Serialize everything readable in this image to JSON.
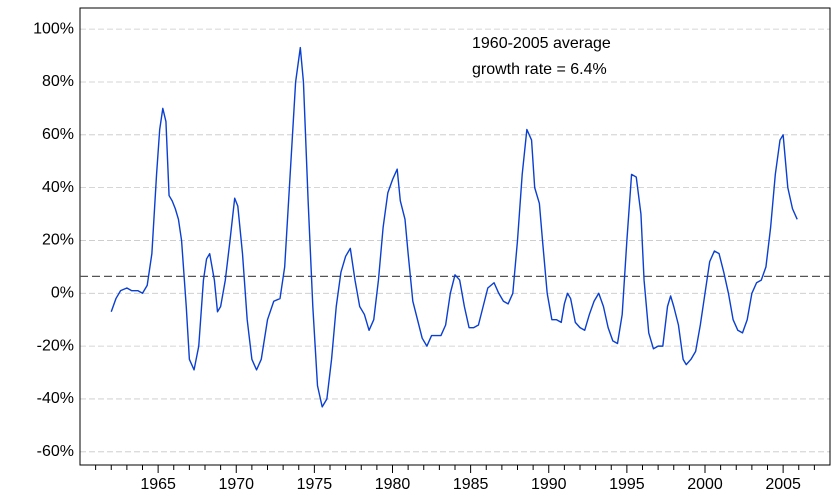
{
  "chart_data": {
    "type": "line",
    "annotation": [
      "1960-2005 average",
      "growth rate = 6.4%"
    ],
    "average": 6.4,
    "xlim": [
      1960,
      2008
    ],
    "ylim": [
      -65,
      108
    ],
    "xticks": [
      1965,
      1970,
      1975,
      1980,
      1985,
      1990,
      1995,
      2000,
      2005
    ],
    "xminorticks": [
      1961,
      1962,
      1963,
      1964,
      1966,
      1967,
      1968,
      1969,
      1971,
      1972,
      1973,
      1974,
      1976,
      1977,
      1978,
      1979,
      1981,
      1982,
      1983,
      1984,
      1986,
      1987,
      1988,
      1989,
      1991,
      1992,
      1993,
      1994,
      1996,
      1997,
      1998,
      1999,
      2001,
      2002,
      2003,
      2004,
      2006,
      2007
    ],
    "yticks": [
      {
        "value": -60,
        "label": "-60%"
      },
      {
        "value": -40,
        "label": "-40%"
      },
      {
        "value": -20,
        "label": "-20%"
      },
      {
        "value": 0,
        "label": "0%"
      },
      {
        "value": 20,
        "label": "20%"
      },
      {
        "value": 40,
        "label": "40%"
      },
      {
        "value": 60,
        "label": "60%"
      },
      {
        "value": 80,
        "label": "80%"
      },
      {
        "value": 100,
        "label": "100%"
      }
    ],
    "grid": true,
    "x": [
      1962.0,
      1962.3,
      1962.6,
      1963.0,
      1963.3,
      1963.7,
      1964.0,
      1964.3,
      1964.6,
      1964.9,
      1965.1,
      1965.3,
      1965.5,
      1965.7,
      1965.9,
      1966.1,
      1966.3,
      1966.5,
      1966.8,
      1967.0,
      1967.3,
      1967.6,
      1967.9,
      1968.1,
      1968.3,
      1968.6,
      1968.8,
      1969.0,
      1969.3,
      1969.6,
      1969.9,
      1970.1,
      1970.4,
      1970.7,
      1971.0,
      1971.3,
      1971.6,
      1972.0,
      1972.4,
      1972.8,
      1973.1,
      1973.4,
      1973.8,
      1974.1,
      1974.3,
      1974.6,
      1974.9,
      1975.2,
      1975.5,
      1975.8,
      1976.1,
      1976.4,
      1976.7,
      1977.0,
      1977.3,
      1977.6,
      1977.9,
      1978.2,
      1978.5,
      1978.8,
      1979.1,
      1979.4,
      1979.7,
      1980.0,
      1980.3,
      1980.5,
      1980.8,
      1981.0,
      1981.3,
      1981.6,
      1981.9,
      1982.2,
      1982.5,
      1982.8,
      1983.1,
      1983.4,
      1983.7,
      1984.0,
      1984.3,
      1984.6,
      1984.9,
      1985.2,
      1985.5,
      1985.8,
      1986.1,
      1986.5,
      1986.8,
      1987.1,
      1987.4,
      1987.7,
      1988.0,
      1988.3,
      1988.6,
      1988.9,
      1989.1,
      1989.4,
      1989.6,
      1989.9,
      1990.2,
      1990.5,
      1990.8,
      1991.0,
      1991.2,
      1991.4,
      1991.7,
      1992.0,
      1992.3,
      1992.6,
      1992.9,
      1993.2,
      1993.5,
      1993.8,
      1994.1,
      1994.4,
      1994.7,
      1995.0,
      1995.3,
      1995.6,
      1995.9,
      1996.1,
      1996.4,
      1996.7,
      1997.0,
      1997.3,
      1997.6,
      1997.8,
      1998.0,
      1998.3,
      1998.6,
      1998.8,
      1999.1,
      1999.4,
      1999.7,
      2000.0,
      2000.3,
      2000.6,
      2000.9,
      2001.2,
      2001.5,
      2001.8,
      2002.1,
      2002.4,
      2002.7,
      2003.0,
      2003.3,
      2003.6,
      2003.9,
      2004.2,
      2004.5,
      2004.8,
      2005.0,
      2005.3,
      2005.6,
      2005.9
    ],
    "series": [
      {
        "color": "#0a3fd1",
        "values": [
          -7,
          -2,
          1,
          2,
          1,
          1,
          0,
          3,
          15,
          45,
          62,
          70,
          65,
          37,
          35,
          32,
          28,
          20,
          -5,
          -25,
          -29,
          -20,
          5,
          13,
          15,
          5,
          -7,
          -5,
          5,
          20,
          36,
          33,
          15,
          -10,
          -25,
          -29,
          -25,
          -10,
          -3,
          -2,
          10,
          40,
          80,
          93,
          80,
          35,
          -5,
          -35,
          -43,
          -40,
          -25,
          -5,
          8,
          14,
          17,
          5,
          -5,
          -8,
          -14,
          -10,
          5,
          25,
          38,
          43,
          47,
          35,
          28,
          15,
          -3,
          -10,
          -17,
          -20,
          -16,
          -16,
          -16,
          -12,
          0,
          7,
          5,
          -5,
          -13,
          -13,
          -12,
          -5,
          2,
          4,
          0,
          -3,
          -4,
          0,
          20,
          45,
          62,
          58,
          40,
          34,
          20,
          0,
          -10,
          -10,
          -11,
          -4,
          0,
          -2,
          -11,
          -13,
          -14,
          -8,
          -3,
          0,
          -5,
          -13,
          -18,
          -19,
          -8,
          20,
          45,
          44,
          30,
          5,
          -15,
          -21,
          -20,
          -20,
          -5,
          -1,
          -5,
          -12,
          -25,
          -27,
          -25,
          -22,
          -12,
          0,
          12,
          16,
          15,
          8,
          0,
          -10,
          -14,
          -15,
          -10,
          0,
          4,
          5,
          10,
          25,
          45,
          58,
          60,
          40,
          32,
          28
        ]
      }
    ]
  }
}
